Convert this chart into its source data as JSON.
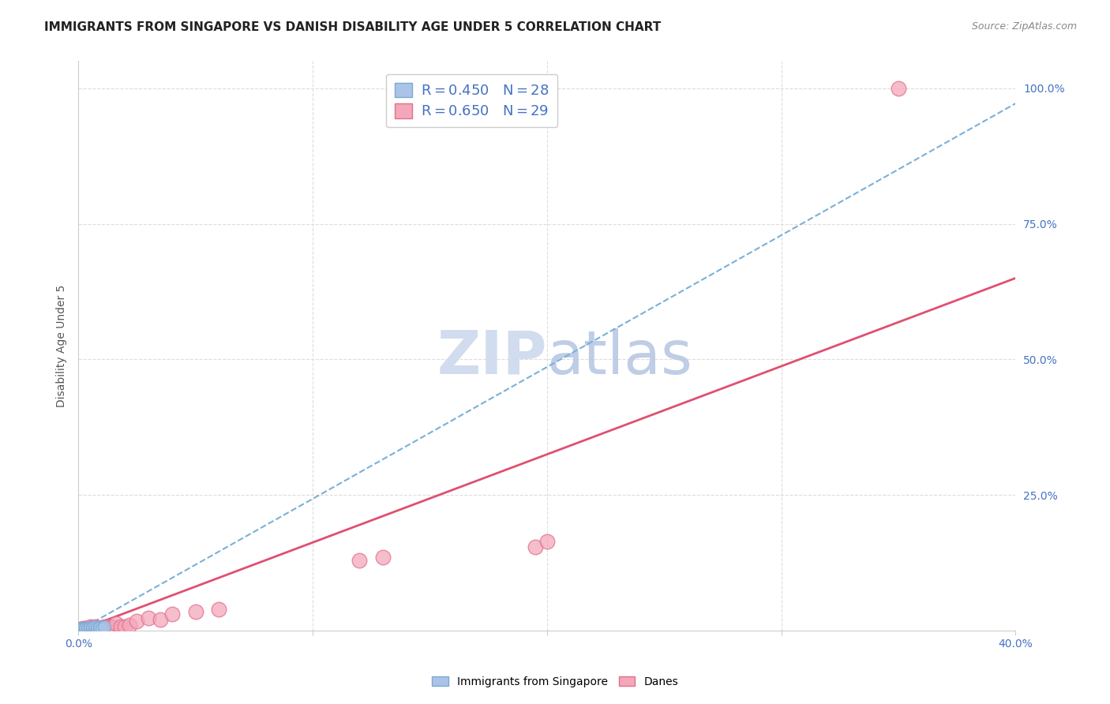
{
  "title": "IMMIGRANTS FROM SINGAPORE VS DANISH DISABILITY AGE UNDER 5 CORRELATION CHART",
  "source": "Source: ZipAtlas.com",
  "ylabel": "Disability Age Under 5",
  "xlim": [
    0.0,
    0.4
  ],
  "ylim": [
    0.0,
    1.05
  ],
  "background_color": "#ffffff",
  "singapore_color": "#aac4e8",
  "singapore_edge": "#7aaad4",
  "singapore_R": 0.45,
  "singapore_N": 28,
  "singapore_x": [
    0.001,
    0.001,
    0.002,
    0.002,
    0.002,
    0.003,
    0.003,
    0.003,
    0.003,
    0.004,
    0.004,
    0.004,
    0.005,
    0.005,
    0.005,
    0.005,
    0.006,
    0.006,
    0.006,
    0.007,
    0.007,
    0.007,
    0.008,
    0.008,
    0.009,
    0.009,
    0.01,
    0.011
  ],
  "singapore_y": [
    0.002,
    0.004,
    0.002,
    0.003,
    0.005,
    0.002,
    0.003,
    0.004,
    0.005,
    0.002,
    0.003,
    0.005,
    0.002,
    0.003,
    0.004,
    0.006,
    0.002,
    0.004,
    0.006,
    0.003,
    0.005,
    0.007,
    0.003,
    0.006,
    0.004,
    0.006,
    0.005,
    0.007
  ],
  "singapore_line_color": "#7ab0d8",
  "singapore_line_style": "--",
  "singapore_slope": 2.43,
  "singapore_intercept": 0.0,
  "danes_color": "#f4a7b9",
  "danes_edge": "#e07090",
  "danes_R": 0.65,
  "danes_N": 29,
  "danes_x": [
    0.001,
    0.002,
    0.003,
    0.004,
    0.005,
    0.006,
    0.007,
    0.008,
    0.01,
    0.011,
    0.012,
    0.013,
    0.014,
    0.015,
    0.016,
    0.018,
    0.02,
    0.022,
    0.025,
    0.03,
    0.035,
    0.04,
    0.05,
    0.06,
    0.12,
    0.13,
    0.195,
    0.2,
    0.35
  ],
  "danes_y": [
    0.003,
    0.004,
    0.005,
    0.005,
    0.007,
    0.006,
    0.008,
    0.005,
    0.006,
    0.008,
    0.006,
    0.007,
    0.007,
    0.006,
    0.013,
    0.008,
    0.007,
    0.01,
    0.018,
    0.023,
    0.02,
    0.03,
    0.035,
    0.04,
    0.13,
    0.135,
    0.155,
    0.165,
    1.0
  ],
  "danes_line_color": "#e05070",
  "danes_line_style": "-",
  "danes_slope": 1.625,
  "danes_intercept": 0.0,
  "grid_color": "#dddddd",
  "grid_style": "--",
  "title_fontsize": 11,
  "axis_label_fontsize": 10,
  "tick_fontsize": 10,
  "tick_color": "#4472c4",
  "watermark_color": "#cdd9ee",
  "watermark_fontsize": 55,
  "source_fontsize": 9,
  "legend_fontsize": 13
}
